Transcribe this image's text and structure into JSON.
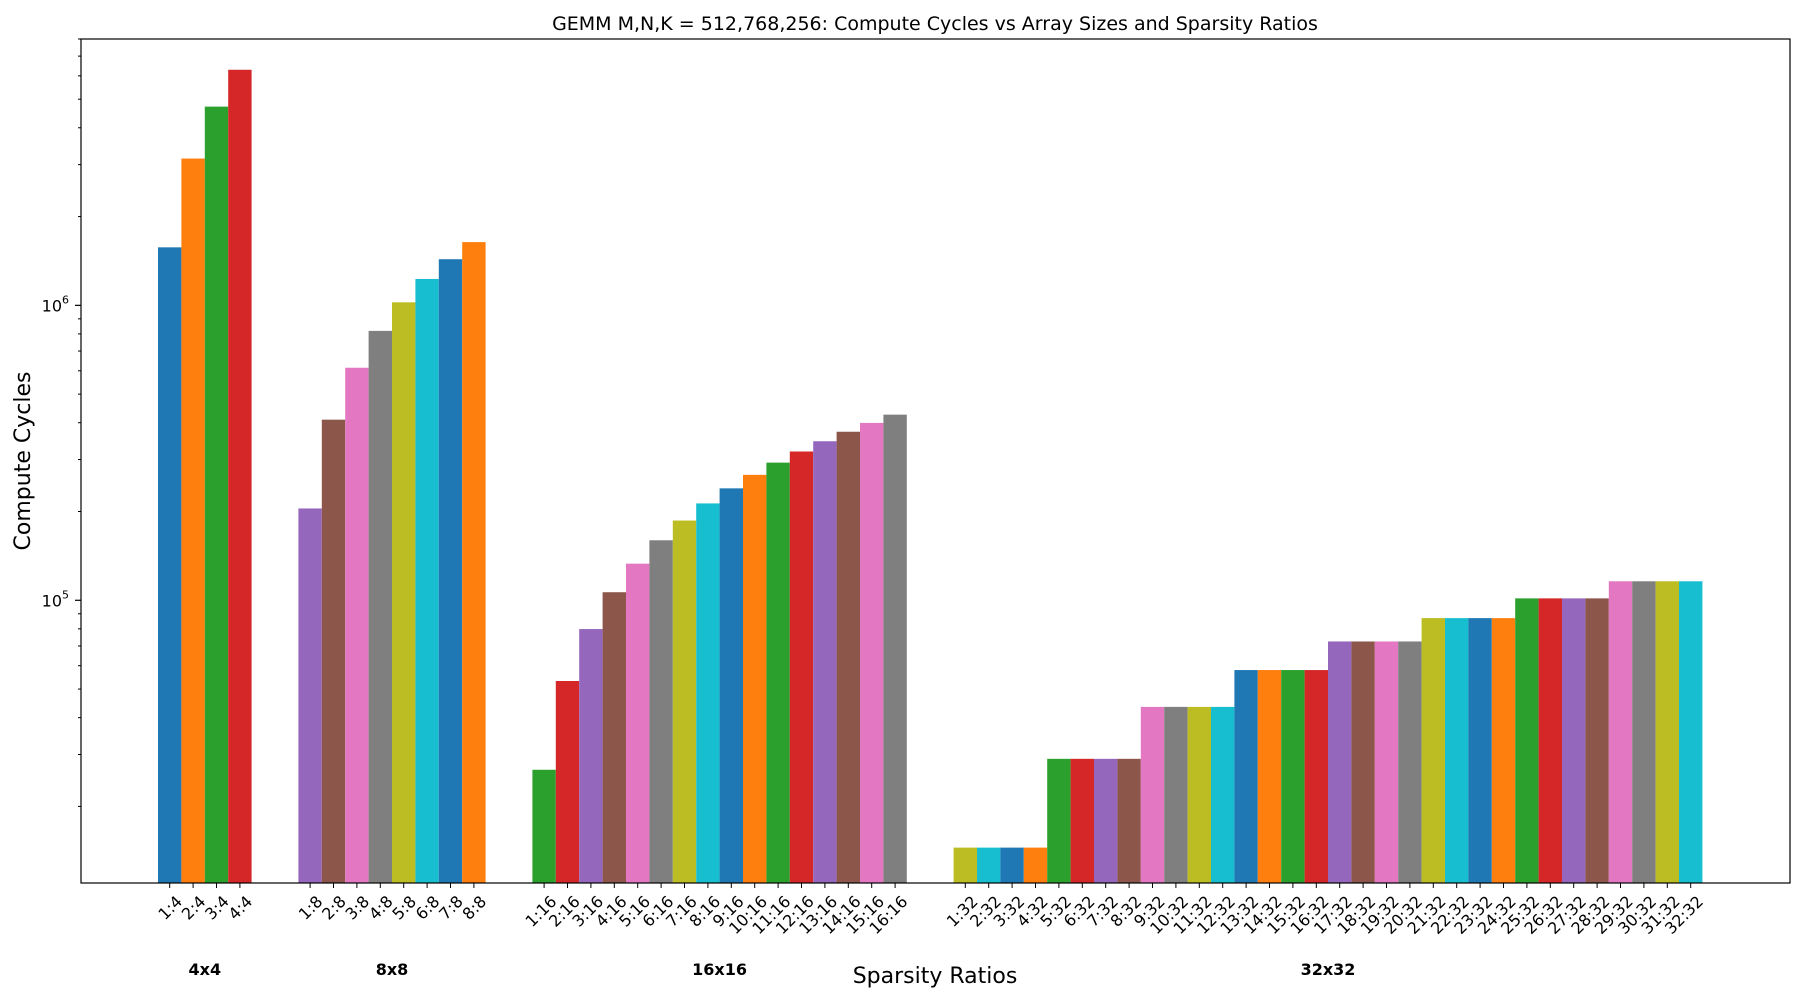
{
  "chart_data": {
    "type": "bar",
    "title": "GEMM M,N,K = 512,768,256: Compute Cycles vs Array Sizes and Sparsity Ratios",
    "xlabel": "Sparsity Ratios",
    "ylabel": "Compute Cycles",
    "yscale": "log",
    "ylim": [
      11000,
      8000000
    ],
    "ytick_labels": [
      {
        "value": 100000,
        "base": "10",
        "exp": "5"
      },
      {
        "value": 1000000,
        "base": "10",
        "exp": "6"
      }
    ],
    "grid": false,
    "legend": "none",
    "color_cycle": [
      "#1f77b4",
      "#ff7f0e",
      "#2ca02c",
      "#d62728",
      "#9467bd",
      "#8c564b",
      "#e377c2",
      "#7f7f7f",
      "#bcbd22",
      "#17becf"
    ],
    "groups": [
      {
        "name": "4x4",
        "categories": [
          "1:4",
          "2:4",
          "3:4",
          "4:4"
        ],
        "values": [
          1572864,
          3145728,
          4718592,
          6291456
        ]
      },
      {
        "name": "8x8",
        "categories": [
          "1:8",
          "2:8",
          "3:8",
          "4:8",
          "5:8",
          "6:8",
          "7:8",
          "8:8"
        ],
        "values": [
          204800,
          409600,
          614400,
          819200,
          1024000,
          1228800,
          1433600,
          1638400
        ]
      },
      {
        "name": "16x16",
        "categories": [
          "1:16",
          "2:16",
          "3:16",
          "4:16",
          "5:16",
          "6:16",
          "7:16",
          "8:16",
          "9:16",
          "10:16",
          "11:16",
          "12:16",
          "13:16",
          "14:16",
          "15:16",
          "16:16"
        ],
        "values": [
          26624,
          53248,
          79872,
          106496,
          133120,
          159744,
          186368,
          212992,
          239616,
          266240,
          292864,
          319488,
          346112,
          372736,
          399360,
          425984
        ]
      },
      {
        "name": "32x32",
        "categories": [
          "1:32",
          "2:32",
          "3:32",
          "4:32",
          "5:32",
          "6:32",
          "7:32",
          "8:32",
          "9:32",
          "10:32",
          "11:32",
          "12:32",
          "13:32",
          "14:32",
          "15:32",
          "16:32",
          "17:32",
          "18:32",
          "19:32",
          "20:32",
          "21:32",
          "22:32",
          "23:32",
          "24:32",
          "25:32",
          "26:32",
          "27:32",
          "28:32",
          "29:32",
          "30:32",
          "31:32",
          "32:32"
        ],
        "values": [
          14500,
          14500,
          14500,
          14500,
          29000,
          29000,
          29000,
          29000,
          43500,
          43500,
          43500,
          43500,
          58000,
          58000,
          58000,
          58000,
          72500,
          72500,
          72500,
          72500,
          87000,
          87000,
          87000,
          87000,
          101500,
          101500,
          101500,
          101500,
          116000,
          116000,
          116000,
          116000
        ]
      }
    ]
  }
}
